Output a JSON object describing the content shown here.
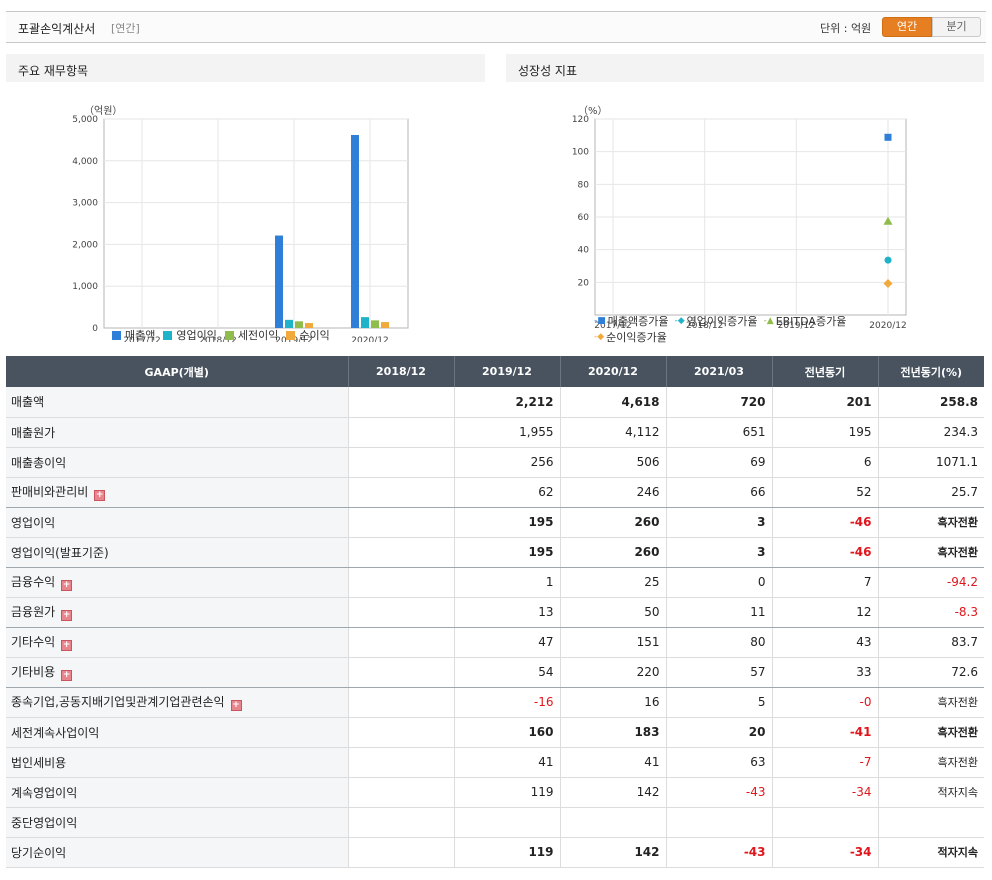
{
  "header": {
    "title": "포괄손익계산서",
    "subtitle": "[연간]",
    "unit_label": "단위 : 억원",
    "toggle_annual": "연간",
    "toggle_quarter": "분기"
  },
  "left_panel": {
    "title": "주요 재무항목",
    "unit": "（억원）"
  },
  "right_panel": {
    "title": "성장성 지표",
    "unit": "（%）"
  },
  "colors": {
    "sales": "#2f7fd8",
    "op": "#1fb3c9",
    "pretax": "#8fbc4a",
    "net": "#f2a93b",
    "accent": "#e67e22",
    "negative": "#e0161d"
  },
  "chart_data": [
    {
      "type": "bar",
      "categories": [
        "2017/12",
        "2018/12",
        "2019/12",
        "2020/12"
      ],
      "ylim": [
        0,
        5000
      ],
      "yticks": [
        "0",
        "1,000",
        "2,000",
        "3,000",
        "4,000",
        "5,000"
      ],
      "ytick_values": [
        0,
        1000,
        2000,
        3000,
        4000,
        5000
      ],
      "series": [
        {
          "name": "매출액",
          "values": [
            null,
            null,
            2212,
            4618
          ]
        },
        {
          "name": "영업이익",
          "values": [
            null,
            null,
            195,
            260
          ]
        },
        {
          "name": "세전이익",
          "values": [
            null,
            null,
            160,
            183
          ]
        },
        {
          "name": "순이익",
          "values": [
            null,
            null,
            119,
            142
          ]
        }
      ],
      "legend": "bottom-left"
    },
    {
      "type": "scatter",
      "categories": [
        "2017/12",
        "2018/12",
        "2019/12",
        "2020/12"
      ],
      "ylim": [
        0,
        120
      ],
      "yticks": [
        "20",
        "40",
        "60",
        "80",
        "100",
        "120"
      ],
      "ytick_values": [
        20,
        40,
        60,
        80,
        100,
        120
      ],
      "series": [
        {
          "name": "매출액증가율",
          "marker": "square",
          "values": [
            null,
            null,
            null,
            108.8
          ]
        },
        {
          "name": "영업이익증가율",
          "marker": "circle",
          "values": [
            null,
            null,
            null,
            33.6
          ]
        },
        {
          "name": "EBITDA증가율",
          "marker": "triangle",
          "values": [
            null,
            null,
            null,
            57.4
          ]
        },
        {
          "name": "순이익증가율",
          "marker": "diamond",
          "values": [
            null,
            null,
            null,
            19.3
          ]
        }
      ],
      "legend": "bottom-left"
    }
  ],
  "table": {
    "columns": [
      "GAAP(개별)",
      "2018/12",
      "2019/12",
      "2020/12",
      "2021/03",
      "전년동기",
      "전년동기(%)"
    ],
    "rows": [
      {
        "label": "매출액",
        "bold": true,
        "expand": false,
        "values": [
          "",
          "2,212",
          "4,618",
          "720",
          "201",
          "258.8"
        ]
      },
      {
        "label": "매출원가",
        "bold": false,
        "expand": false,
        "values": [
          "",
          "1,955",
          "4,112",
          "651",
          "195",
          "234.3"
        ]
      },
      {
        "label": "매출총이익",
        "bold": false,
        "expand": false,
        "values": [
          "",
          "256",
          "506",
          "69",
          "6",
          "1071.1"
        ]
      },
      {
        "label": "판매비와관리비",
        "bold": false,
        "expand": true,
        "values": [
          "",
          "62",
          "246",
          "66",
          "52",
          "25.7"
        ],
        "sep": true
      },
      {
        "label": "영업이익",
        "bold": true,
        "expand": false,
        "values": [
          "",
          "195",
          "260",
          "3",
          "-46",
          "흑자전환"
        ]
      },
      {
        "label": "영업이익(발표기준)",
        "bold": true,
        "expand": false,
        "values": [
          "",
          "195",
          "260",
          "3",
          "-46",
          "흑자전환"
        ],
        "sep": true
      },
      {
        "label": "금융수익",
        "bold": false,
        "expand": true,
        "values": [
          "",
          "1",
          "25",
          "0",
          "7",
          "-94.2"
        ]
      },
      {
        "label": "금융원가",
        "bold": false,
        "expand": true,
        "values": [
          "",
          "13",
          "50",
          "11",
          "12",
          "-8.3"
        ],
        "sep": true
      },
      {
        "label": "기타수익",
        "bold": false,
        "expand": true,
        "values": [
          "",
          "47",
          "151",
          "80",
          "43",
          "83.7"
        ]
      },
      {
        "label": "기타비용",
        "bold": false,
        "expand": true,
        "values": [
          "",
          "54",
          "220",
          "57",
          "33",
          "72.6"
        ],
        "sep": true
      },
      {
        "label": "종속기업,공동지배기업및관계기업관련손익",
        "bold": false,
        "expand": true,
        "values": [
          "",
          "-16",
          "16",
          "5",
          "-0",
          "흑자전환"
        ]
      },
      {
        "label": "세전계속사업이익",
        "bold": true,
        "expand": false,
        "values": [
          "",
          "160",
          "183",
          "20",
          "-41",
          "흑자전환"
        ]
      },
      {
        "label": "법인세비용",
        "bold": false,
        "expand": false,
        "values": [
          "",
          "41",
          "41",
          "63",
          "-7",
          "흑자전환"
        ]
      },
      {
        "label": "계속영업이익",
        "bold": false,
        "expand": false,
        "values": [
          "",
          "119",
          "142",
          "-43",
          "-34",
          "적자지속"
        ]
      },
      {
        "label": "중단영업이익",
        "bold": false,
        "expand": false,
        "values": [
          "",
          "",
          "",
          "",
          "",
          ""
        ]
      },
      {
        "label": "당기순이익",
        "bold": true,
        "expand": false,
        "values": [
          "",
          "119",
          "142",
          "-43",
          "-34",
          "적자지속"
        ]
      }
    ]
  }
}
